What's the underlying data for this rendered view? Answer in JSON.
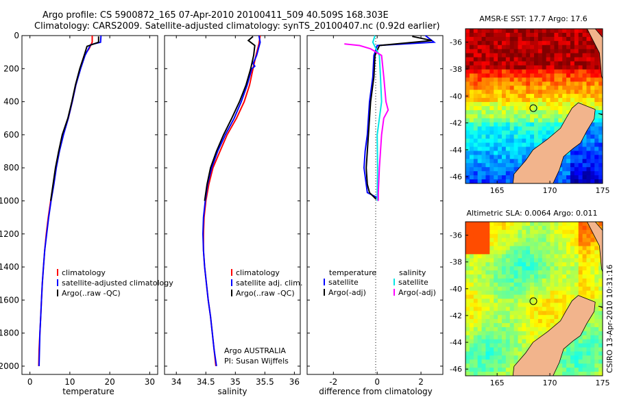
{
  "header": {
    "line1": "Argo profile: CS 5900872_165 07-Apr-2010 20100411_509 40.509S 168.303E",
    "line2": "Climatology: CARS2009. Satellite-adjusted climatology: synTS_20100407.nc (0.92d earlier)"
  },
  "footer": {
    "agency": "Argo AUSTRALIA",
    "pi": "PI: Susan Wijffels",
    "timestamp": "CSIRO 13-Apr-2010 10:31:16"
  },
  "colors": {
    "climatology": "#ff0000",
    "satellite": "#0000ff",
    "argo": "#000000",
    "sal_satellite": "#00e5e5",
    "sal_argo": "#ff00ff",
    "land": "#f2b48c"
  },
  "chart_data": [
    {
      "type": "line",
      "id": "temperature",
      "xlabel": "temperature",
      "ylabel": "",
      "xlim": [
        -2,
        32
      ],
      "ylim": [
        2050,
        0
      ],
      "x_ticks": [
        0,
        10,
        20,
        30
      ],
      "y_ticks": [
        0,
        200,
        400,
        600,
        800,
        1000,
        1200,
        1400,
        1600,
        1800,
        2000
      ],
      "legend": [
        "climatology",
        "satellite-adjusted climatology",
        "Argo(..raw -QC)"
      ],
      "series": [
        {
          "name": "climatology",
          "color": "#ff0000",
          "points": [
            [
              15.6,
              0
            ],
            [
              15.6,
              40
            ],
            [
              14.8,
              80
            ],
            [
              13.6,
              120
            ],
            [
              12.6,
              200
            ],
            [
              11.5,
              300
            ],
            [
              10.6,
              400
            ],
            [
              9.6,
              500
            ],
            [
              8.3,
              600
            ],
            [
              7.3,
              700
            ],
            [
              6.5,
              800
            ],
            [
              5.9,
              900
            ],
            [
              5.2,
              1000
            ],
            [
              4.6,
              1100
            ],
            [
              4.1,
              1200
            ],
            [
              3.7,
              1300
            ],
            [
              3.4,
              1400
            ],
            [
              3.1,
              1500
            ],
            [
              2.9,
              1600
            ],
            [
              2.7,
              1700
            ],
            [
              2.5,
              1800
            ],
            [
              2.3,
              1900
            ],
            [
              2.2,
              2000
            ]
          ]
        },
        {
          "name": "satellite-adjusted climatology",
          "color": "#0000ff",
          "points": [
            [
              17.8,
              0
            ],
            [
              17.7,
              40
            ],
            [
              15.2,
              55
            ],
            [
              13.8,
              120
            ],
            [
              12.7,
              200
            ],
            [
              11.5,
              300
            ],
            [
              10.6,
              400
            ],
            [
              9.6,
              500
            ],
            [
              8.4,
              600
            ],
            [
              7.4,
              700
            ],
            [
              6.6,
              800
            ],
            [
              6.0,
              900
            ],
            [
              5.3,
              1000
            ],
            [
              4.7,
              1100
            ],
            [
              4.2,
              1200
            ],
            [
              3.7,
              1300
            ],
            [
              3.4,
              1400
            ],
            [
              3.1,
              1500
            ],
            [
              2.9,
              1600
            ],
            [
              2.7,
              1700
            ],
            [
              2.5,
              1800
            ],
            [
              2.4,
              1900
            ],
            [
              2.3,
              2000
            ]
          ]
        },
        {
          "name": "Argo(..raw -QC)",
          "color": "#000000",
          "points": [
            [
              17.2,
              5
            ],
            [
              17.2,
              40
            ],
            [
              14.3,
              65
            ],
            [
              13.6,
              120
            ],
            [
              12.5,
              200
            ],
            [
              11.4,
              300
            ],
            [
              10.5,
              400
            ],
            [
              9.5,
              500
            ],
            [
              8.1,
              600
            ],
            [
              7.2,
              700
            ],
            [
              6.4,
              800
            ],
            [
              5.8,
              900
            ],
            [
              5.2,
              1000
            ]
          ]
        }
      ]
    },
    {
      "type": "line",
      "id": "salinity",
      "xlabel": "salinity",
      "xlim": [
        33.8,
        36.1
      ],
      "ylim": [
        2050,
        0
      ],
      "x_ticks": [
        34,
        34.5,
        35,
        35.5,
        36
      ],
      "legend": [
        "climatology",
        "satellite adj. clim.",
        "Argo(..raw -QC)"
      ],
      "series": [
        {
          "name": "climatology",
          "color": "#ff0000",
          "points": [
            [
              35.42,
              0
            ],
            [
              35.4,
              50
            ],
            [
              35.35,
              120
            ],
            [
              35.3,
              200
            ],
            [
              35.24,
              300
            ],
            [
              35.15,
              400
            ],
            [
              35.02,
              500
            ],
            [
              34.86,
              600
            ],
            [
              34.74,
              700
            ],
            [
              34.62,
              800
            ],
            [
              34.55,
              900
            ],
            [
              34.5,
              1000
            ],
            [
              34.47,
              1100
            ],
            [
              34.46,
              1200
            ],
            [
              34.46,
              1300
            ],
            [
              34.48,
              1400
            ],
            [
              34.51,
              1500
            ],
            [
              34.54,
              1600
            ],
            [
              34.58,
              1700
            ],
            [
              34.61,
              1800
            ],
            [
              34.64,
              1900
            ],
            [
              34.67,
              2000
            ]
          ]
        },
        {
          "name": "satellite adj. clim.",
          "color": "#0000ff",
          "points": [
            [
              35.4,
              0
            ],
            [
              35.42,
              40
            ],
            [
              35.36,
              120
            ],
            [
              35.3,
              170
            ],
            [
              35.33,
              185
            ],
            [
              35.28,
              200
            ],
            [
              35.2,
              300
            ],
            [
              35.1,
              400
            ],
            [
              34.98,
              500
            ],
            [
              34.83,
              600
            ],
            [
              34.7,
              700
            ],
            [
              34.6,
              800
            ],
            [
              34.53,
              900
            ],
            [
              34.49,
              1000
            ],
            [
              34.46,
              1100
            ],
            [
              34.45,
              1200
            ],
            [
              34.46,
              1300
            ],
            [
              34.48,
              1400
            ],
            [
              34.51,
              1500
            ],
            [
              34.54,
              1600
            ],
            [
              34.58,
              1700
            ],
            [
              34.61,
              1800
            ],
            [
              34.64,
              1900
            ],
            [
              34.68,
              2000
            ]
          ]
        },
        {
          "name": "Argo(..raw -QC)",
          "color": "#000000",
          "points": [
            [
              35.3,
              5
            ],
            [
              35.22,
              30
            ],
            [
              35.33,
              60
            ],
            [
              35.31,
              120
            ],
            [
              35.26,
              200
            ],
            [
              35.18,
              300
            ],
            [
              35.07,
              400
            ],
            [
              34.94,
              500
            ],
            [
              34.8,
              600
            ],
            [
              34.68,
              700
            ],
            [
              34.58,
              800
            ],
            [
              34.52,
              900
            ],
            [
              34.48,
              1000
            ]
          ]
        }
      ]
    },
    {
      "type": "line",
      "id": "difference",
      "xlabel": "difference from climatology",
      "xlim": [
        -3.2,
        3.0
      ],
      "ylim": [
        2050,
        0
      ],
      "x_ticks": [
        -2,
        0,
        2
      ],
      "legend_temperature": [
        "temperature",
        "satellite",
        "Argo(-adj)"
      ],
      "legend_salinity": [
        "salinity",
        "satellite",
        "Argo(-adj)"
      ],
      "series": [
        {
          "name": "temperature satellite",
          "color": "#0000ff",
          "points": [
            [
              2.2,
              0
            ],
            [
              2.6,
              40
            ],
            [
              0,
              60
            ],
            [
              -0.15,
              120
            ],
            [
              -0.2,
              250
            ],
            [
              -0.35,
              400
            ],
            [
              -0.4,
              500
            ],
            [
              -0.45,
              600
            ],
            [
              -0.55,
              700
            ],
            [
              -0.6,
              800
            ],
            [
              -0.5,
              900
            ],
            [
              -0.45,
              950
            ],
            [
              0,
              980
            ]
          ]
        },
        {
          "name": "temperature Argo(-adj)",
          "color": "#000000",
          "points": [
            [
              1.6,
              5
            ],
            [
              2.5,
              30
            ],
            [
              0.1,
              60
            ],
            [
              -0.1,
              120
            ],
            [
              -0.15,
              250
            ],
            [
              -0.3,
              400
            ],
            [
              -0.35,
              500
            ],
            [
              -0.4,
              600
            ],
            [
              -0.45,
              700
            ],
            [
              -0.5,
              800
            ],
            [
              -0.45,
              900
            ],
            [
              -0.35,
              950
            ],
            [
              -0.05,
              990
            ]
          ]
        },
        {
          "name": "salinity satellite",
          "color": "#00e5e5",
          "points": [
            [
              -0.1,
              0
            ],
            [
              -0.2,
              40
            ],
            [
              0.1,
              120
            ],
            [
              0.15,
              250
            ],
            [
              0.2,
              400
            ],
            [
              0.1,
              500
            ],
            [
              0.0,
              600
            ],
            [
              0.02,
              800
            ],
            [
              0,
              1000
            ]
          ]
        },
        {
          "name": "salinity Argo(-adj)",
          "color": "#ff00ff",
          "points": [
            [
              -1.5,
              50
            ],
            [
              -0.8,
              60
            ],
            [
              -0.3,
              80
            ],
            [
              0.2,
              120
            ],
            [
              0.3,
              250
            ],
            [
              0.4,
              400
            ],
            [
              0.5,
              450
            ],
            [
              0.3,
              500
            ],
            [
              0.2,
              600
            ],
            [
              0.1,
              800
            ],
            [
              0.05,
              950
            ],
            [
              0.05,
              1000
            ]
          ]
        }
      ]
    }
  ],
  "maps": [
    {
      "title": "AMSR-E SST: 17.7 Argo: 17.6",
      "lon_range": [
        162,
        175
      ],
      "lat_range": [
        -46.5,
        -35
      ],
      "x_ticks": [
        165,
        170,
        175
      ],
      "y_ticks": [
        -36,
        -38,
        -40,
        -42,
        -44,
        -46
      ],
      "marker": [
        168.303,
        -40.509
      ]
    },
    {
      "title": "Altimetric SLA: 0.0064 Argo: 0.011",
      "lon_range": [
        162,
        175
      ],
      "lat_range": [
        -46.5,
        -35
      ],
      "x_ticks": [
        165,
        170,
        175
      ],
      "y_ticks": [
        -36,
        -38,
        -40,
        -42,
        -44,
        -46
      ],
      "marker": [
        168.303,
        -40.509
      ]
    }
  ]
}
